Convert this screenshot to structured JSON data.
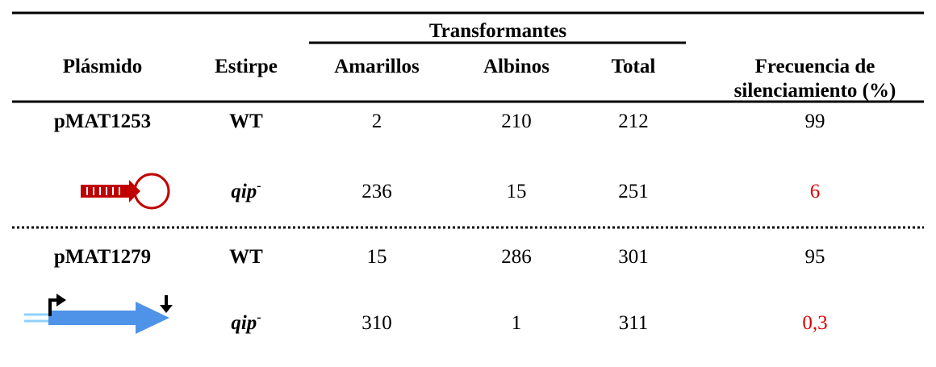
{
  "header": {
    "plasmid": "Plásmido",
    "strain": "Estirpe",
    "group": "Transformantes",
    "yellow": "Amarillos",
    "albino": "Albinos",
    "total": "Total",
    "frequency": [
      "Frecuencia de",
      "silenciamiento (%)"
    ]
  },
  "highlight_color": "#e00000",
  "rows": [
    {
      "plasmid": "pMAT1253",
      "strain": {
        "name": "WT"
      },
      "yellow": 2,
      "albino": 210,
      "total": 212,
      "frequency": 99,
      "highlight": false
    },
    {
      "strain": {
        "name": "qip",
        "sup": "-"
      },
      "yellow": 236,
      "albino": 15,
      "total": 251,
      "frequency": 6,
      "highlight": true
    },
    {
      "plasmid": "pMAT1279",
      "strain": {
        "name": "WT"
      },
      "yellow": 15,
      "albino": 286,
      "total": 301,
      "frequency": 95,
      "highlight": false
    },
    {
      "strain": {
        "name": "qip",
        "sup": "-"
      },
      "yellow": 310,
      "albino": 1,
      "total": 311,
      "frequency": "0,3",
      "highlight": true
    }
  ]
}
